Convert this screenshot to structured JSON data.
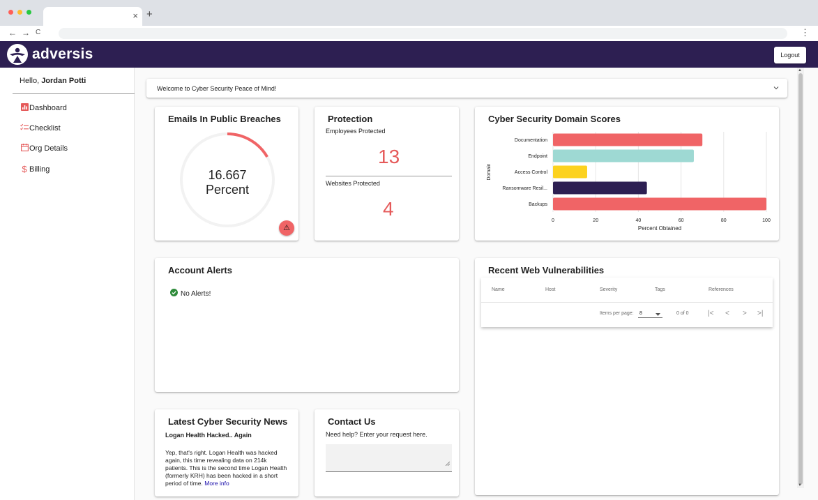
{
  "browser": {
    "tab_close": "×",
    "tab_new": "+",
    "back": "←",
    "forward": "→",
    "reload": "C",
    "menu": "⋮"
  },
  "header": {
    "brand": "adversis",
    "logout_label": "Logout",
    "bg_color": "#2d1f52"
  },
  "sidebar": {
    "greeting": "Hello,",
    "user_name": "Jordan Potti",
    "items": [
      {
        "label": "Dashboard",
        "icon": "bar-chart-icon"
      },
      {
        "label": "Checklist",
        "icon": "checklist-icon"
      },
      {
        "label": "Org Details",
        "icon": "calendar-icon"
      },
      {
        "label": "Billing",
        "icon": "dollar-icon"
      }
    ]
  },
  "welcome": {
    "text": "Welcome to Cyber Security Peace of Mind!"
  },
  "breaches": {
    "title": "Emails In Public Breaches",
    "value": "16.667",
    "unit": "Percent",
    "percent": 16.667,
    "alert_icon": "⚠"
  },
  "protection": {
    "title": "Protection",
    "employees_label": "Employees Protected",
    "employees_value": "13",
    "websites_label": "Websites Protected",
    "websites_value": "4"
  },
  "chart_data": {
    "type": "bar",
    "orientation": "horizontal",
    "title": "Cyber Security Domain Scores",
    "xlabel": "Percent Obtained",
    "ylabel": "Domain",
    "categories": [
      "Documentation",
      "Endpoint",
      "Access Control",
      "Ransomware Resil...",
      "Backups"
    ],
    "values": [
      70,
      66,
      16,
      44,
      100
    ],
    "colors": [
      "#f06466",
      "#9ed9d3",
      "#fcd21f",
      "#2d1f52",
      "#f06466"
    ],
    "xlim": [
      0,
      100
    ],
    "xticks": [
      0,
      20,
      40,
      60,
      80,
      100
    ],
    "grid": true
  },
  "alerts": {
    "title": "Account Alerts",
    "message": "No Alerts!"
  },
  "vulns": {
    "title": "Recent Web Vulnerabilities",
    "columns": [
      "Name",
      "Host",
      "Severity",
      "Tags",
      "References"
    ],
    "items_per_page_label": "Items per page:",
    "items_per_page_value": "8",
    "range": "0 of 0",
    "first": "|<",
    "prev": "<",
    "next": ">",
    "last": ">|"
  },
  "news": {
    "title": "Latest Cyber Security News",
    "headline": "Logan Health Hacked.. Again",
    "body": "Yep, that's right. Logan Health was hacked again, this time revealing data on 214k patients. This is the second time Logan Health (formerly KRH) has been hacked in a short period of time.",
    "more_link": "More info"
  },
  "contact": {
    "title": "Contact Us",
    "prompt": "Need help? Enter your request here."
  }
}
